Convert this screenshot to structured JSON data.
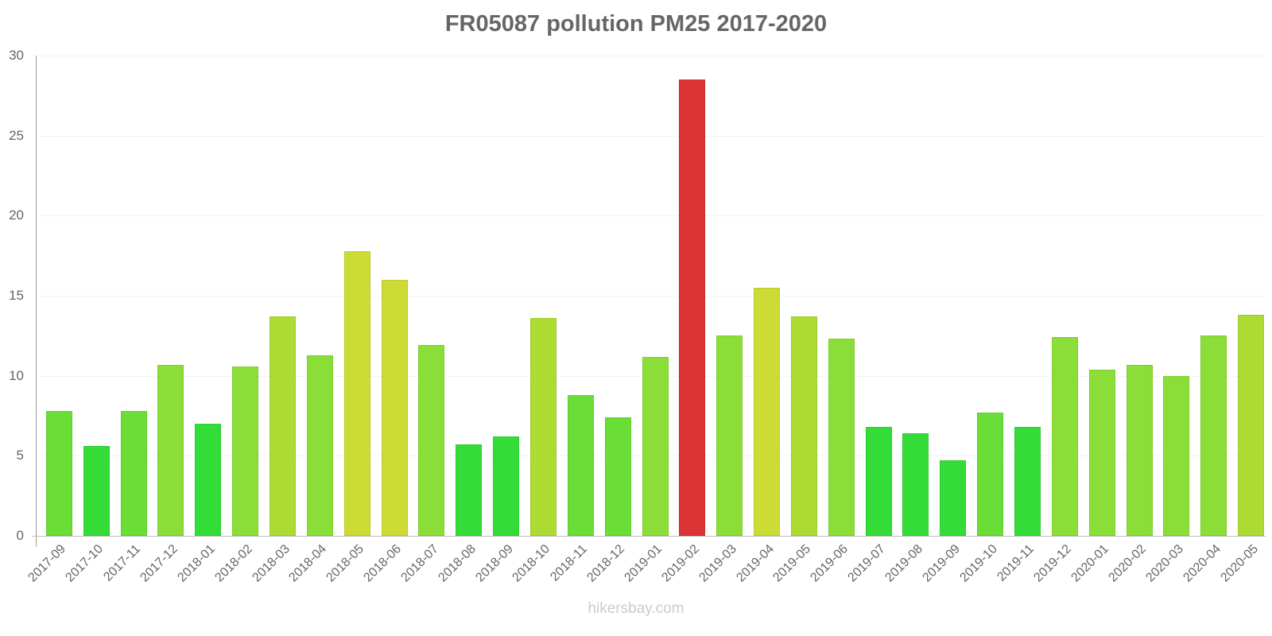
{
  "chart_data": {
    "type": "bar",
    "title": "FR05087 pollution PM25 2017-2020",
    "xlabel": "",
    "ylabel": "",
    "ylim": [
      0,
      30
    ],
    "yticks": [
      0,
      5,
      10,
      15,
      20,
      25,
      30
    ],
    "grid": true,
    "legend": null,
    "categories": [
      "2017-09",
      "2017-10",
      "2017-11",
      "2017-12",
      "2018-01",
      "2018-02",
      "2018-03",
      "2018-04",
      "2018-05",
      "2018-06",
      "2018-07",
      "2018-08",
      "2018-09",
      "2018-10",
      "2018-11",
      "2018-12",
      "2019-01",
      "2019-02",
      "2019-03",
      "2019-04",
      "2019-05",
      "2019-06",
      "2019-07",
      "2019-08",
      "2019-09",
      "2019-10",
      "2019-11",
      "2019-12",
      "2020-01",
      "2020-02",
      "2020-03",
      "2020-04",
      "2020-05"
    ],
    "values": [
      7.8,
      5.6,
      7.8,
      10.7,
      7.0,
      10.6,
      13.7,
      11.3,
      17.8,
      16.0,
      11.9,
      5.7,
      6.2,
      13.6,
      8.8,
      7.4,
      11.2,
      28.5,
      12.5,
      15.5,
      13.7,
      12.3,
      6.8,
      6.4,
      4.7,
      7.7,
      6.8,
      12.4,
      10.4,
      10.7,
      10.0,
      12.5,
      13.8
    ],
    "colors": [
      "#6ade37",
      "#34dc37",
      "#6ade37",
      "#8ade37",
      "#34dc37",
      "#8ade37",
      "#acdc34",
      "#8ade37",
      "#cddc34",
      "#cddc34",
      "#8ade37",
      "#34dc37",
      "#34dc37",
      "#acdc34",
      "#6ade37",
      "#6ade37",
      "#8ade37",
      "#dc3434",
      "#8ade37",
      "#cddc34",
      "#acdc34",
      "#8ade37",
      "#34dc37",
      "#34dc37",
      "#34dc37",
      "#6ade37",
      "#34dc37",
      "#8ade37",
      "#8ade37",
      "#8ade37",
      "#8ade37",
      "#8ade37",
      "#acdc34"
    ]
  },
  "footer": {
    "watermark": "hikersbay.com"
  }
}
